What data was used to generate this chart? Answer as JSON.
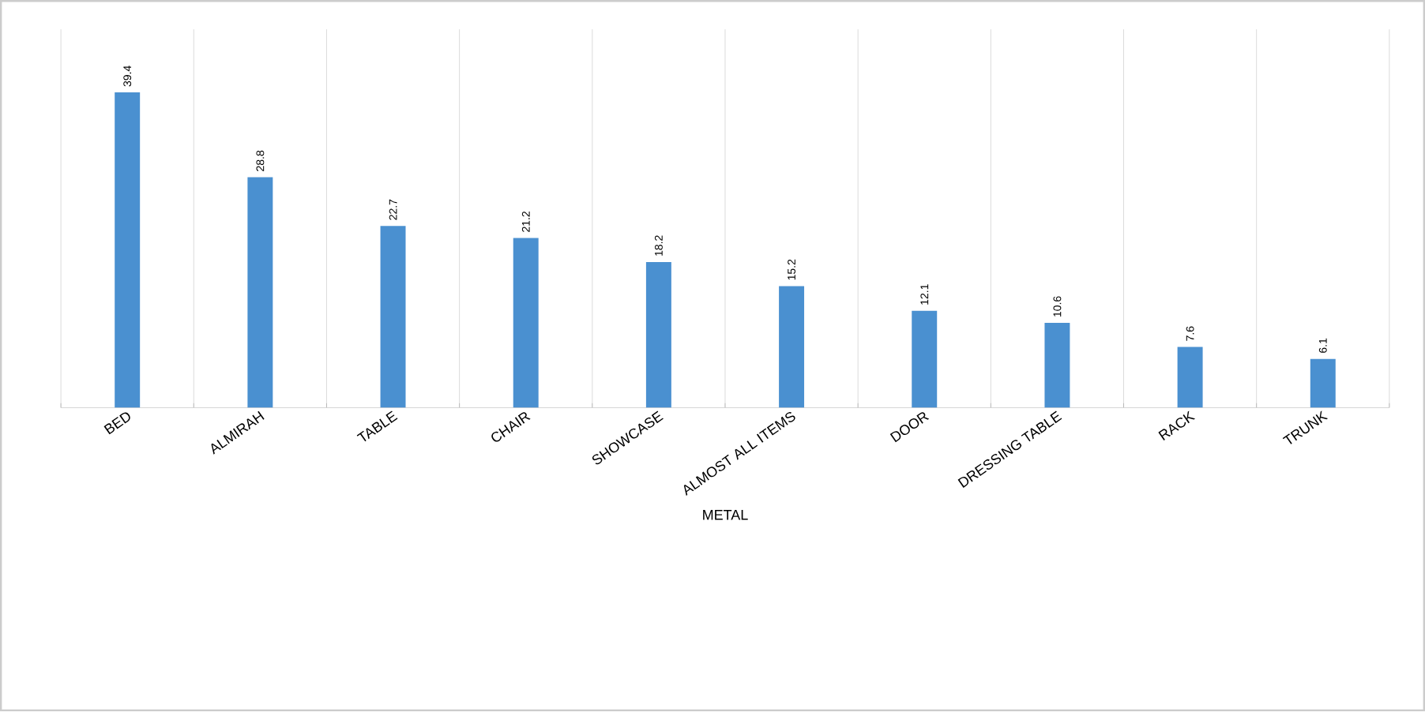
{
  "chart_data": {
    "type": "bar",
    "xlabel": "METAL",
    "categories": [
      "BED",
      "ALMIRAH",
      "TABLE",
      "CHAIR",
      "SHOWCASE",
      "ALMOST ALL ITEMS",
      "DOOR",
      "DRESSING TABLE",
      "RACK",
      "TRUNK"
    ],
    "values": [
      39.4,
      28.8,
      22.7,
      21.2,
      18.2,
      15.2,
      12.1,
      10.6,
      7.6,
      6.1
    ],
    "color": "#4a90d0",
    "data_labels": true,
    "grid": "x"
  }
}
